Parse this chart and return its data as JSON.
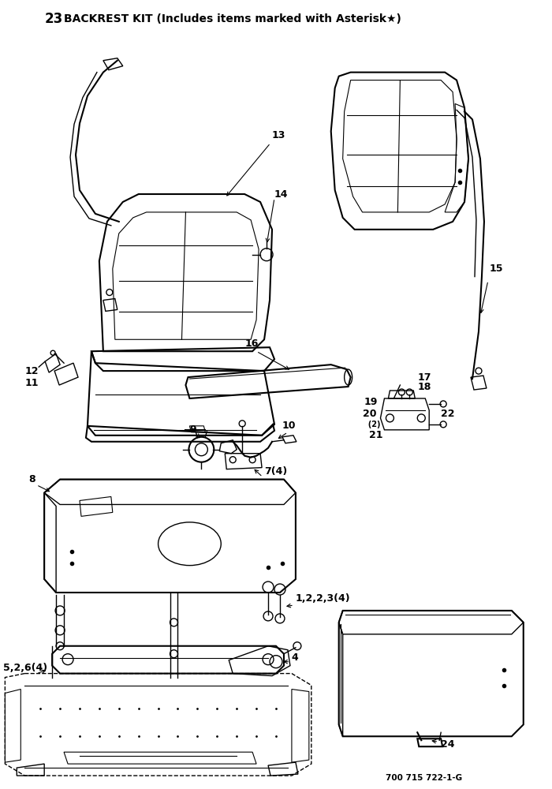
{
  "background_color": "#ffffff",
  "title_num": "23",
  "title_text": "BACKREST KIT (Includes items marked with Asterisk★)",
  "part_number": "700 715 722-1-G",
  "fig_width": 7.0,
  "fig_height": 10.0,
  "dpi": 100
}
